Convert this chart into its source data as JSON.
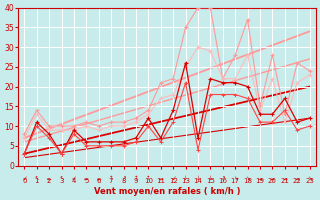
{
  "xlabel": "Vent moyen/en rafales ( km/h )",
  "xlim": [
    -0.5,
    23.5
  ],
  "ylim": [
    0,
    40
  ],
  "yticks": [
    0,
    5,
    10,
    15,
    20,
    25,
    30,
    35,
    40
  ],
  "xticks": [
    0,
    1,
    2,
    3,
    4,
    5,
    6,
    7,
    8,
    9,
    10,
    11,
    12,
    13,
    14,
    15,
    16,
    17,
    18,
    19,
    20,
    21,
    22,
    23
  ],
  "bg_color": "#c8ecec",
  "grid_color": "#ffffff",
  "line_pink_high": [
    8,
    14,
    10,
    10,
    10,
    11,
    10,
    11,
    11,
    12,
    14,
    21,
    22,
    35,
    40,
    40,
    22,
    28,
    37,
    15,
    28,
    13,
    26,
    24
  ],
  "line_pink_low": [
    7,
    13,
    9,
    9,
    9,
    10,
    9,
    10,
    10,
    11,
    13,
    17,
    18,
    25,
    30,
    29,
    22,
    22,
    28,
    14,
    22,
    11,
    21,
    23
  ],
  "line_dark_high": [
    3,
    11,
    8,
    3,
    9,
    6,
    6,
    6,
    6,
    7,
    12,
    7,
    14,
    26,
    7,
    22,
    21,
    21,
    20,
    13,
    13,
    17,
    11,
    12
  ],
  "line_dark_low": [
    3,
    10,
    7,
    3,
    8,
    5,
    5,
    5,
    5,
    6,
    10,
    6,
    11,
    21,
    4,
    18,
    18,
    18,
    17,
    11,
    11,
    14,
    9,
    10
  ],
  "trend_pink_upper": [
    7,
    34
  ],
  "trend_pink_lower": [
    6,
    27
  ],
  "trend_dark_upper": [
    3,
    20
  ],
  "trend_dark_lower": [
    2,
    12
  ],
  "pink_color": "#ff9999",
  "pink_light": "#ffbbbb",
  "dark_color": "#dd0000",
  "dark_light": "#ff4444",
  "text_color": "#cc0000",
  "arrow_symbols": [
    "↙",
    "↖",
    "←",
    "↖",
    "↙",
    "←",
    "←",
    "↑",
    "↗",
    "↑",
    "↑",
    "←",
    "↙",
    "↓",
    "↓",
    "↓",
    "↗",
    "↘",
    "↘",
    "→",
    "→",
    "→",
    "→",
    "↘"
  ]
}
